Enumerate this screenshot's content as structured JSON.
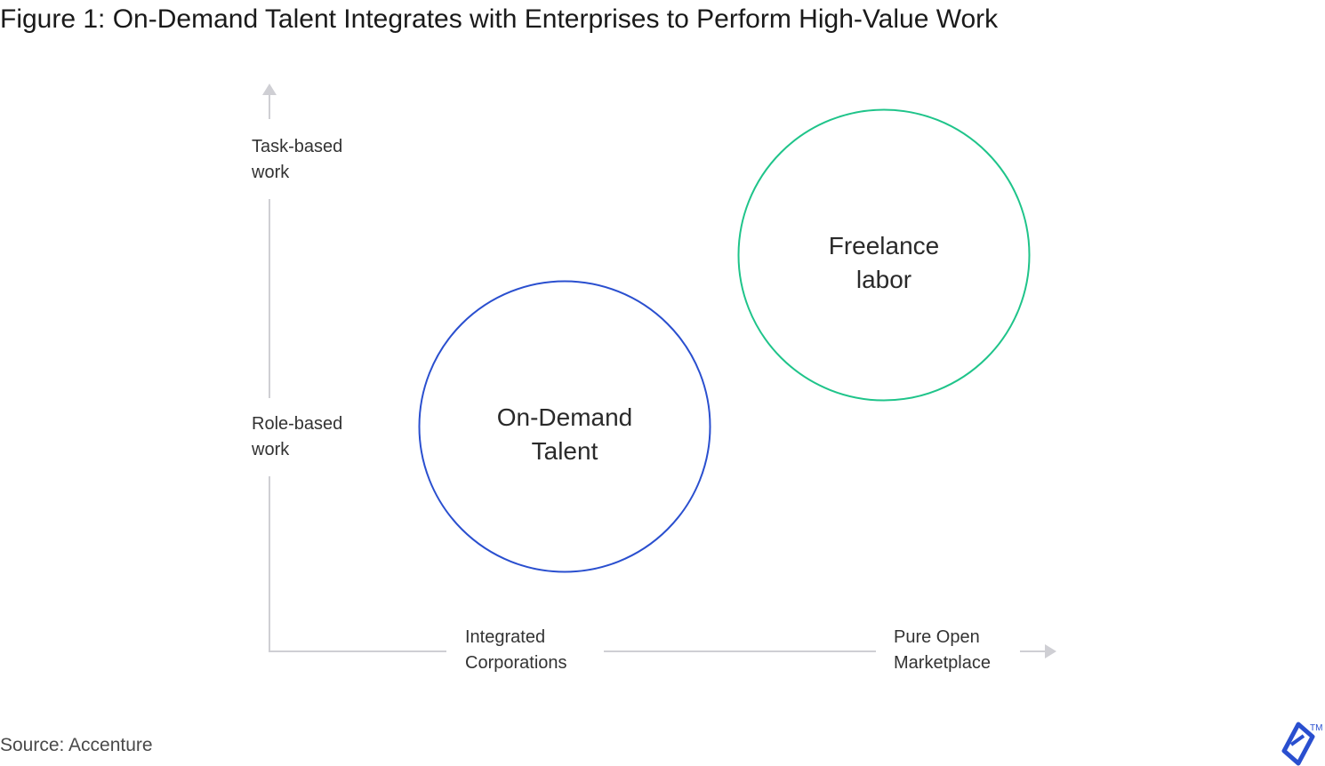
{
  "title": "Figure 1: On-Demand Talent Integrates with Enterprises to Perform High-Value Work",
  "source": "Source: Accenture",
  "y_axis": {
    "top_label": [
      "Task-based",
      "work"
    ],
    "bottom_label": [
      "Role-based",
      "work"
    ]
  },
  "x_axis": {
    "left_label": [
      "Integrated",
      "Corporations"
    ],
    "right_label": [
      "Pure Open",
      "Marketplace"
    ]
  },
  "circles": [
    {
      "label": [
        "On-Demand",
        "Talent"
      ],
      "color": "#2a4fcf"
    },
    {
      "label": [
        "Freelance",
        "labor"
      ],
      "color": "#1fc48a"
    }
  ],
  "colors": {
    "axis": "#cfcfd4",
    "logo": "#2a4fcf"
  },
  "logo": {
    "name": "toptal-logo-icon",
    "trademark": "TM"
  }
}
